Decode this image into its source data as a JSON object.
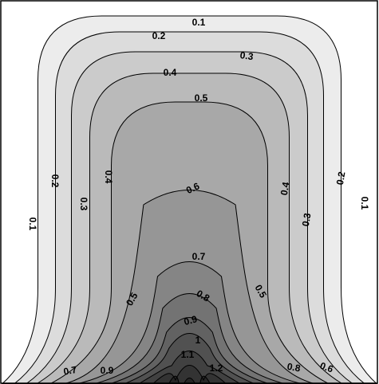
{
  "chart_data": {
    "type": "contour",
    "title": "",
    "xlabel": "",
    "ylabel": "",
    "grid": false,
    "legend": "none",
    "levels": [
      0,
      0.1,
      0.2,
      0.3,
      0.4,
      0.5,
      0.6,
      0.7,
      0.8,
      0.9,
      1.0,
      1.1,
      1.2,
      1.3
    ],
    "fill_colors": [
      "#ffffff",
      "#ececec",
      "#dcdcdc",
      "#cbcbcb",
      "#bababa",
      "#a8a8a8",
      "#969696",
      "#858585",
      "#737373",
      "#626262",
      "#515151",
      "#414141",
      "#333333",
      "#262626"
    ],
    "contour_labels": [
      {
        "text": "0.1",
        "level": 0.1,
        "side": "top-center"
      },
      {
        "text": "0.2",
        "level": 0.2,
        "side": "top-left"
      },
      {
        "text": "0.3",
        "level": 0.3,
        "side": "top-right"
      },
      {
        "text": "0.4",
        "level": 0.4,
        "side": "top-left"
      },
      {
        "text": "0.5",
        "level": 0.5,
        "side": "top-center"
      },
      {
        "text": "0.2",
        "level": 0.2,
        "side": "left"
      },
      {
        "text": "0.4",
        "level": 0.4,
        "side": "left"
      },
      {
        "text": "0.3",
        "level": 0.3,
        "side": "left"
      },
      {
        "text": "0.1",
        "level": 0.1,
        "side": "left"
      },
      {
        "text": "0.4",
        "level": 0.4,
        "side": "right"
      },
      {
        "text": "0.2",
        "level": 0.2,
        "side": "right"
      },
      {
        "text": "0.1",
        "level": 0.1,
        "side": "right"
      },
      {
        "text": "0.3",
        "level": 0.3,
        "side": "right"
      },
      {
        "text": "0.6",
        "level": 0.6,
        "side": "center"
      },
      {
        "text": "0.7",
        "level": 0.7,
        "side": "center"
      },
      {
        "text": "0.5",
        "level": 0.5,
        "side": "bottom-left"
      },
      {
        "text": "0.5",
        "level": 0.5,
        "side": "bottom-right"
      },
      {
        "text": "0.8",
        "level": 0.8,
        "side": "center"
      },
      {
        "text": "0.9",
        "level": 0.9,
        "side": "center"
      },
      {
        "text": "1",
        "level": 1.0,
        "side": "center"
      },
      {
        "text": "1.1",
        "level": 1.1,
        "side": "center"
      },
      {
        "text": "1.2",
        "level": 1.2,
        "side": "center"
      },
      {
        "text": "0.7",
        "level": 0.7,
        "side": "bottom-left"
      },
      {
        "text": "0.9",
        "level": 0.9,
        "side": "bottom-left"
      },
      {
        "text": "0.8",
        "level": 0.8,
        "side": "bottom-right"
      },
      {
        "text": "0.6",
        "level": 0.6,
        "side": "bottom-right"
      }
    ]
  }
}
